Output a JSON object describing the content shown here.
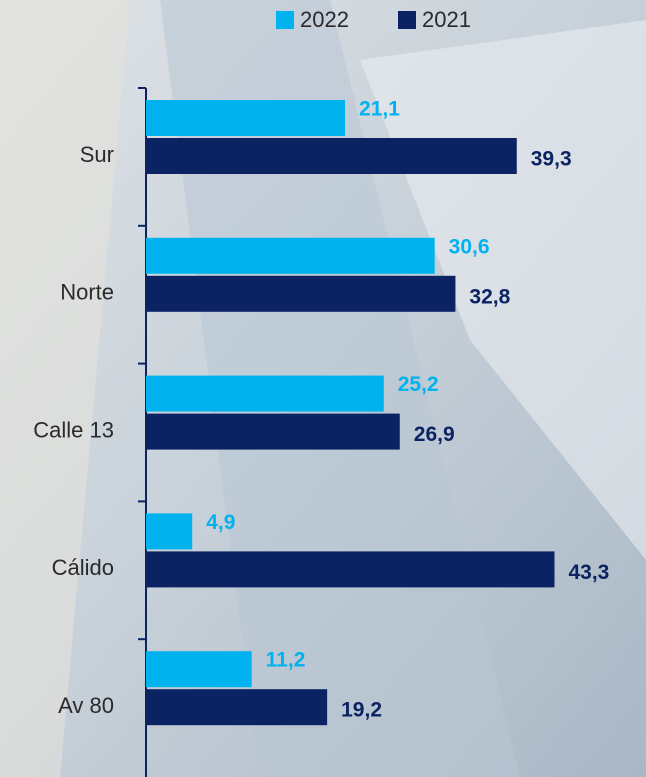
{
  "chart_data": {
    "type": "hbar",
    "categories": [
      "Sur",
      "Norte",
      "Calle 13",
      "Cálido",
      "Av 80"
    ],
    "series": [
      {
        "name": "2022",
        "color": "#00b2ee",
        "values": [
          21.1,
          30.6,
          25.2,
          4.9,
          11.2
        ],
        "value_labels": [
          "21,1",
          "30,6",
          "25,2",
          "4,9",
          "11,2"
        ]
      },
      {
        "name": "2021",
        "color": "#0c2363",
        "values": [
          39.3,
          32.8,
          26.9,
          43.3,
          19.2
        ],
        "value_labels": [
          "39,3",
          "32,8",
          "26,9",
          "43,3",
          "19,2"
        ]
      }
    ],
    "xlim": [
      0,
      53
    ]
  }
}
